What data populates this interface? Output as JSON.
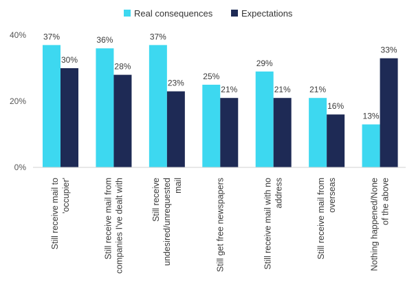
{
  "chart_data": {
    "type": "bar",
    "title": "",
    "xlabel": "",
    "ylabel": "",
    "ylim": [
      0,
      40
    ],
    "yticks": [
      0,
      20,
      40
    ],
    "ytick_labels": [
      "0%",
      "20%",
      "40%"
    ],
    "grid": false,
    "legend_position": "top-center",
    "categories": [
      [
        "Still receive mail to",
        "'occupier'"
      ],
      [
        "Still receive mail from",
        "companies I've dealt with"
      ],
      [
        "Still receive",
        "undesired/unrequested",
        "mail"
      ],
      [
        "Still get free newspapers"
      ],
      [
        "Still receive mail with no",
        "address"
      ],
      [
        "Still receive mail from",
        "overseas"
      ],
      [
        "Nothing happened/None",
        "of the above"
      ]
    ],
    "series": [
      {
        "name": "Real consequences",
        "color": "#3dd8f0",
        "values": [
          37,
          36,
          37,
          25,
          29,
          21,
          13
        ],
        "labels": [
          "37%",
          "36%",
          "37%",
          "25%",
          "29%",
          "21%",
          "13%"
        ]
      },
      {
        "name": "Expectations",
        "color": "#1e2a55",
        "values": [
          30,
          28,
          23,
          21,
          21,
          16,
          33
        ],
        "labels": [
          "30%",
          "28%",
          "23%",
          "21%",
          "21%",
          "16%",
          "33%"
        ]
      }
    ]
  }
}
